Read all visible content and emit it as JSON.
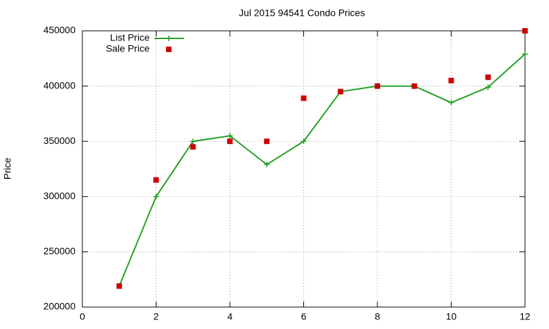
{
  "chart_data": {
    "type": "line",
    "title": "Jul 2015 94541 Condo Prices",
    "y_label": "Price",
    "x": [
      1,
      2,
      3,
      4,
      5,
      6,
      7,
      8,
      9,
      10,
      11,
      12
    ],
    "series": [
      {
        "name": "List Price",
        "color": "#22a022",
        "mode": "lines+points",
        "values": [
          219000,
          300000,
          350000,
          355000,
          329000,
          350000,
          395000,
          400000,
          400000,
          385000,
          399000,
          429000
        ]
      },
      {
        "name": "Sale Price",
        "color": "#cc0000",
        "mode": "points",
        "values": [
          219000,
          315000,
          345000,
          350000,
          350000,
          389000,
          395000,
          400000,
          400000,
          405000,
          408000,
          450000
        ]
      }
    ],
    "xlim": [
      0,
      12
    ],
    "xticks": [
      0,
      2,
      4,
      6,
      8,
      10,
      12
    ],
    "ylim": [
      200000,
      450000
    ],
    "yticks": [
      200000,
      250000,
      300000,
      350000,
      400000,
      450000
    ],
    "grid": true,
    "legend": "top-left"
  }
}
